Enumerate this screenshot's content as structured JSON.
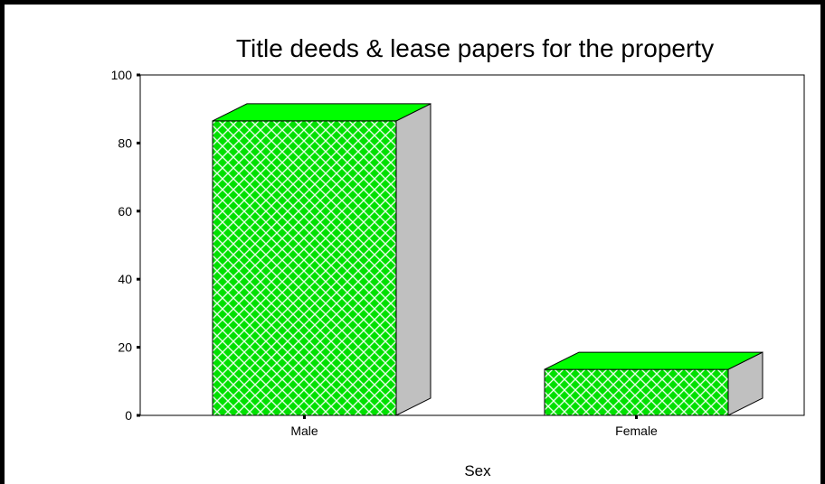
{
  "chart_data": {
    "type": "bar",
    "title": "Title deeds & lease papers for the property",
    "xlabel": "Sex",
    "ylabel": "",
    "categories": [
      "Male",
      "Female"
    ],
    "values": [
      86.5,
      13.5
    ],
    "ylim": [
      0,
      100
    ],
    "yticks": [
      "0",
      "20",
      "40",
      "60",
      "80",
      "100"
    ],
    "grid": false,
    "legend": "none",
    "colors": {
      "bar_front": "#00e000",
      "bar_top": "#00ff00",
      "bar_side": "#c0c0c0",
      "hatch": "#e6ffe6"
    }
  }
}
